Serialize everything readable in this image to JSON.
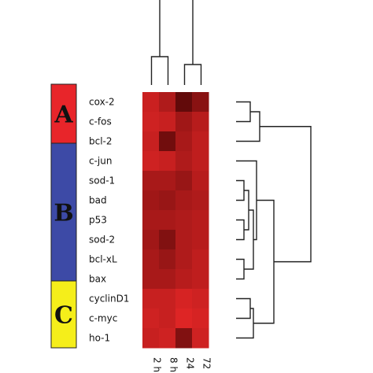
{
  "chart_data": {
    "type": "heatmap",
    "columns": [
      "2 h",
      "8 h",
      "24 h",
      "72 h"
    ],
    "rows": [
      "cox-2",
      "c-fos",
      "bcl-2",
      "c-jun",
      "sod-1",
      "bad",
      "p53",
      "sod-2",
      "bcl-xL",
      "bax",
      "cyclinD1",
      "c-myc",
      "ho-1"
    ],
    "values": [
      [
        0.28,
        0.45,
        0.95,
        0.7
      ],
      [
        0.25,
        0.3,
        0.55,
        0.4
      ],
      [
        0.3,
        0.85,
        0.5,
        0.35
      ],
      [
        0.25,
        0.3,
        0.45,
        0.35
      ],
      [
        0.5,
        0.5,
        0.6,
        0.4
      ],
      [
        0.55,
        0.6,
        0.5,
        0.45
      ],
      [
        0.5,
        0.5,
        0.45,
        0.4
      ],
      [
        0.55,
        0.75,
        0.45,
        0.4
      ],
      [
        0.5,
        0.6,
        0.45,
        0.35
      ],
      [
        0.5,
        0.5,
        0.4,
        0.35
      ],
      [
        0.3,
        0.3,
        0.2,
        0.25
      ],
      [
        0.25,
        0.3,
        0.15,
        0.2
      ],
      [
        0.3,
        0.25,
        0.75,
        0.25
      ]
    ],
    "color_low": "#f52a2a",
    "color_high": "#5a0808",
    "groups": [
      {
        "label": "A",
        "rows": [
          0,
          2
        ],
        "color": "#e8252a"
      },
      {
        "label": "B",
        "rows": [
          3,
          9
        ],
        "color": "#3d4aa6"
      },
      {
        "label": "C",
        "rows": [
          10,
          12
        ],
        "color": "#f5ee1a"
      }
    ],
    "column_dendrogram": [
      [
        0,
        1
      ],
      [
        2,
        3
      ],
      [
        [
          0,
          1
        ],
        [
          2,
          3
        ]
      ]
    ],
    "row_dendrogram": [
      [
        0,
        1
      ],
      [
        [
          0,
          1
        ],
        2
      ],
      [
        4,
        5
      ],
      [
        6,
        7
      ],
      [
        [
          4,
          5
        ],
        [
          6,
          7
        ]
      ],
      [
        8,
        9
      ],
      [
        [
          [
            4,
            5
          ],
          [
            6,
            7
          ]
        ],
        [
          8,
          9
        ]
      ],
      [
        3,
        [
          [
            [
              4,
              5
            ],
            [
              6,
              7
            ]
          ],
          [
            8,
            9
          ]
        ]
      ],
      [
        10,
        11
      ],
      [
        [
          10,
          11
        ],
        12
      ],
      [
        [
          3,
          [
            [
              [
                4,
                5
              ],
              [
                6,
                7
              ]
            ],
            [
              8,
              9
            ]
          ]
        ],
        [
          [
            10,
            11
          ],
          12
        ]
      ],
      [
        [
          [
            0,
            1
          ],
          2
        ],
        [
          [
            3,
            [
              [
                [
                  4,
                  5
                ],
                [
                  6,
                  7
                ]
              ],
              [
                8,
                9
              ]
            ]
          ],
          [
            [
              10,
              11
            ],
            12
          ]
        ]
      ]
    ]
  }
}
